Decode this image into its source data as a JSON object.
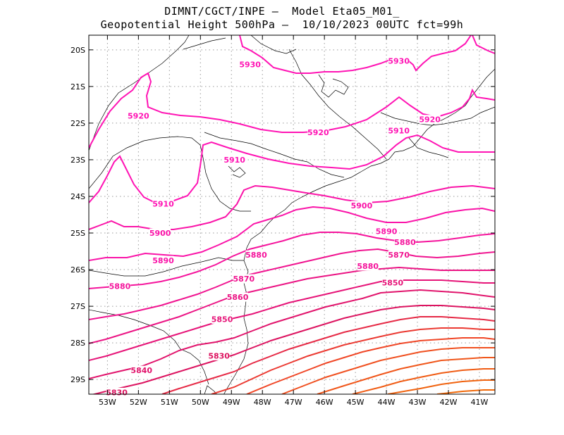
{
  "header": {
    "line1": "DIMNT/CGCT/INPE –  Model Eta05_M01_",
    "line2": "Geopotential Height 500hPa –  10/10/2023 00UTC fct=99h"
  },
  "map": {
    "lon_range": [
      -53.6,
      -40.5
    ],
    "lat_range": [
      -29.4,
      -19.6
    ],
    "x_ticks": [
      {
        "lon": -53,
        "label": "53W"
      },
      {
        "lon": -52,
        "label": "52W"
      },
      {
        "lon": -51,
        "label": "51W"
      },
      {
        "lon": -50,
        "label": "50W"
      },
      {
        "lon": -49,
        "label": "49W"
      },
      {
        "lon": -48,
        "label": "48W"
      },
      {
        "lon": -47,
        "label": "47W"
      },
      {
        "lon": -46,
        "label": "46W"
      },
      {
        "lon": -45,
        "label": "45W"
      },
      {
        "lon": -44,
        "label": "44W"
      },
      {
        "lon": -43,
        "label": "43W"
      },
      {
        "lon": -42,
        "label": "42W"
      },
      {
        "lon": -41,
        "label": "41W"
      }
    ],
    "y_ticks": [
      {
        "lat": -20,
        "label": "20S"
      },
      {
        "lat": -21,
        "label": "21S"
      },
      {
        "lat": -22,
        "label": "22S"
      },
      {
        "lat": -23,
        "label": "23S"
      },
      {
        "lat": -24,
        "label": "24S"
      },
      {
        "lat": -25,
        "label": "25S"
      },
      {
        "lat": -26,
        "label": "26S"
      },
      {
        "lat": -27,
        "label": "27S"
      },
      {
        "lat": -28,
        "label": "28S"
      },
      {
        "lat": -29,
        "label": "29S"
      }
    ],
    "grid": true,
    "contour_labels": [
      {
        "text": "5930",
        "lon": -48.4,
        "lat": -20.4,
        "color": "#ff14b4"
      },
      {
        "text": "5930",
        "lon": -43.6,
        "lat": -20.3,
        "color": "#ff14b4"
      },
      {
        "text": "5920",
        "lon": -52.0,
        "lat": -21.8,
        "color": "#ff14b4"
      },
      {
        "text": "5920",
        "lon": -46.2,
        "lat": -22.25,
        "color": "#ff14b4"
      },
      {
        "text": "5920",
        "lon": -42.6,
        "lat": -21.9,
        "color": "#ff14b4"
      },
      {
        "text": "5910",
        "lon": -48.9,
        "lat": -23.0,
        "color": "#ff14b4"
      },
      {
        "text": "5910",
        "lon": -43.6,
        "lat": -22.2,
        "color": "#ff14b4"
      },
      {
        "text": "5910",
        "lon": -51.2,
        "lat": -24.2,
        "color": "#ff14b4"
      },
      {
        "text": "5900",
        "lon": -51.3,
        "lat": -25.0,
        "color": "#fa14a8"
      },
      {
        "text": "5900",
        "lon": -44.8,
        "lat": -24.25,
        "color": "#fa14a8"
      },
      {
        "text": "5890",
        "lon": -51.2,
        "lat": -25.75,
        "color": "#fa14a8"
      },
      {
        "text": "5890",
        "lon": -44.0,
        "lat": -24.95,
        "color": "#fa14a8"
      },
      {
        "text": "5880",
        "lon": -52.6,
        "lat": -26.45,
        "color": "#f5149c"
      },
      {
        "text": "5880",
        "lon": -48.2,
        "lat": -25.6,
        "color": "#f5149c"
      },
      {
        "text": "5880",
        "lon": -43.4,
        "lat": -25.25,
        "color": "#f5149c"
      },
      {
        "text": "5880",
        "lon": -44.6,
        "lat": -25.9,
        "color": "#f5149c"
      },
      {
        "text": "5870",
        "lon": -48.6,
        "lat": -26.25,
        "color": "#f01490"
      },
      {
        "text": "5870",
        "lon": -43.6,
        "lat": -25.6,
        "color": "#f01490"
      },
      {
        "text": "5860",
        "lon": -48.8,
        "lat": -26.75,
        "color": "#eb1484"
      },
      {
        "text": "5850",
        "lon": -49.3,
        "lat": -27.35,
        "color": "#e61478"
      },
      {
        "text": "5850",
        "lon": -43.8,
        "lat": -26.35,
        "color": "#e61478"
      },
      {
        "text": "5840",
        "lon": -51.9,
        "lat": -28.75,
        "color": "#e1146c"
      },
      {
        "text": "5830",
        "lon": -49.4,
        "lat": -28.35,
        "color": "#dc1460"
      },
      {
        "text": "5830",
        "lon": -52.7,
        "lat": -29.35,
        "color": "#dc1460"
      }
    ]
  }
}
